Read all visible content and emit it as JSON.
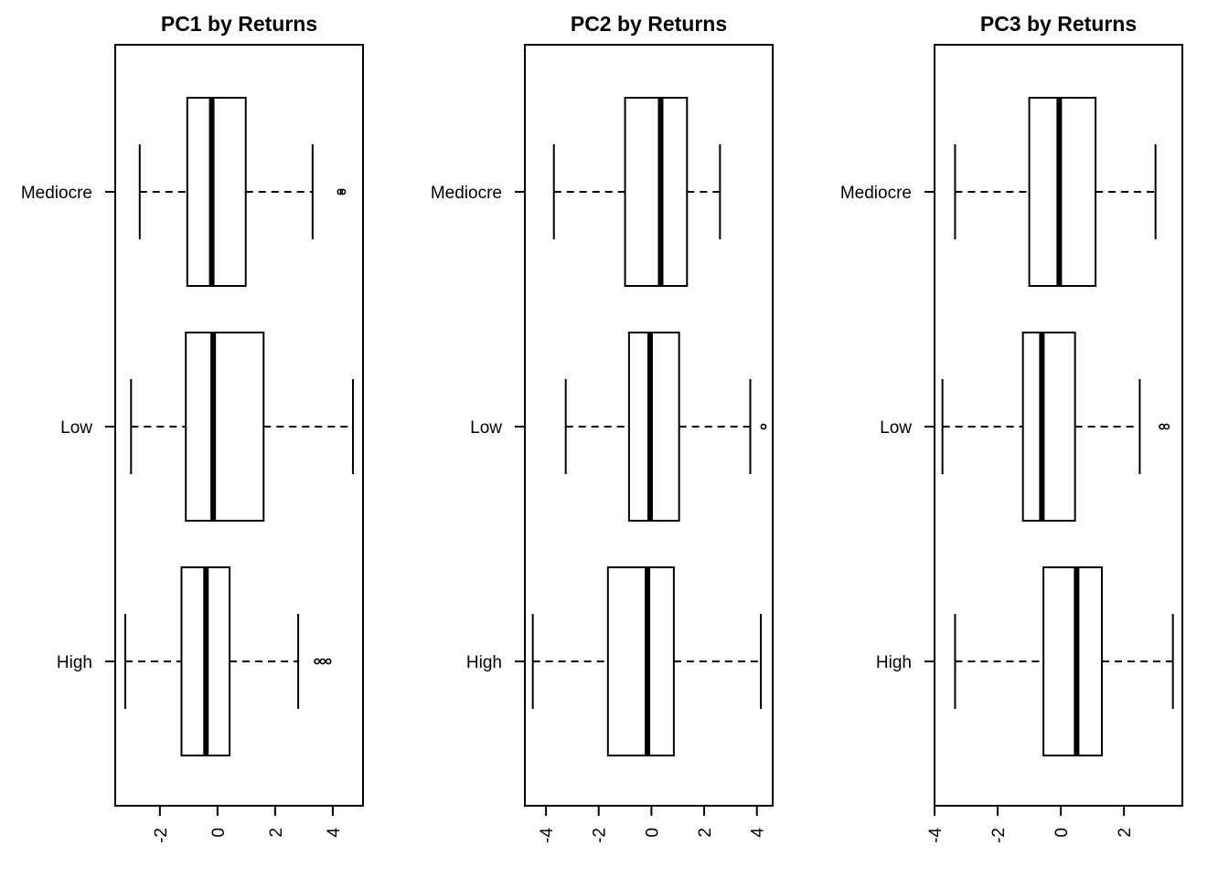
{
  "chart_data": [
    {
      "type": "boxplot",
      "title": "PC1 by Returns",
      "orientation": "horizontal",
      "categories": [
        "High",
        "Low",
        "Mediocre"
      ],
      "xlim": [
        -3.55,
        5.05
      ],
      "xticks": [
        -2,
        0,
        2,
        4
      ],
      "boxes": [
        {
          "category": "High",
          "whisker_low": -3.2,
          "q1": -1.25,
          "median": -0.4,
          "q3": 0.42,
          "whisker_high": 2.8,
          "outliers": [
            3.45,
            3.65,
            3.85
          ]
        },
        {
          "category": "Low",
          "whisker_low": -3.0,
          "q1": -1.1,
          "median": -0.15,
          "q3": 1.6,
          "whisker_high": 4.7,
          "outliers": []
        },
        {
          "category": "Mediocre",
          "whisker_low": -2.7,
          "q1": -1.05,
          "median": -0.2,
          "q3": 0.98,
          "whisker_high": 3.3,
          "outliers": [
            4.25,
            4.35
          ]
        }
      ]
    },
    {
      "type": "boxplot",
      "title": "PC2 by Returns",
      "orientation": "horizontal",
      "categories": [
        "High",
        "Low",
        "Mediocre"
      ],
      "xlim": [
        -4.8,
        4.6
      ],
      "xticks": [
        -4,
        -2,
        0,
        2,
        4
      ],
      "boxes": [
        {
          "category": "High",
          "whisker_low": -4.5,
          "q1": -1.65,
          "median": -0.15,
          "q3": 0.85,
          "whisker_high": 4.15,
          "outliers": []
        },
        {
          "category": "Low",
          "whisker_low": -3.25,
          "q1": -0.85,
          "median": -0.05,
          "q3": 1.05,
          "whisker_high": 3.75,
          "outliers": [
            4.25
          ]
        },
        {
          "category": "Mediocre",
          "whisker_low": -3.7,
          "q1": -1.0,
          "median": 0.35,
          "q3": 1.35,
          "whisker_high": 2.6,
          "outliers": []
        }
      ]
    },
    {
      "type": "boxplot",
      "title": "PC3 by Returns",
      "orientation": "horizontal",
      "categories": [
        "High",
        "Low",
        "Mediocre"
      ],
      "xlim": [
        -4.0,
        3.85
      ],
      "xticks": [
        -4,
        -2,
        0,
        2
      ],
      "boxes": [
        {
          "category": "High",
          "whisker_low": -3.35,
          "q1": -0.55,
          "median": 0.5,
          "q3": 1.3,
          "whisker_high": 3.55,
          "outliers": []
        },
        {
          "category": "Low",
          "whisker_low": -3.75,
          "q1": -1.2,
          "median": -0.6,
          "q3": 0.45,
          "whisker_high": 2.5,
          "outliers": [
            3.2,
            3.35
          ]
        },
        {
          "category": "Mediocre",
          "whisker_low": -3.35,
          "q1": -1.0,
          "median": -0.05,
          "q3": 1.1,
          "whisker_high": 3.0,
          "outliers": []
        }
      ]
    }
  ]
}
